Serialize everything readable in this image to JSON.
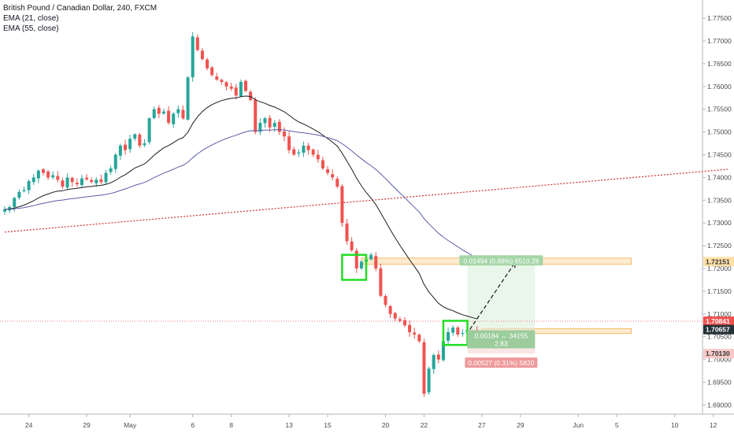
{
  "legend": {
    "title": "British Pound / Canadian Dollar, 240, FXCM",
    "ema_fast": "EMA (21, close)",
    "ema_slow": "EMA (55, close)"
  },
  "colors": {
    "up": "#26a69a",
    "down": "#ef5350",
    "ema_fast": "#1c1c1c",
    "ema_slow": "#5b5ca8",
    "trend": "#d32f2f",
    "box": "#22dd22",
    "zone": "#fbe3b8",
    "price_line": "#ef5350",
    "price_tag": "#263238",
    "target_tag": "#a5d6a7",
    "stop_tag": "#ef9a9a"
  },
  "chart_data": {
    "type": "candlestick",
    "symbol": "British Pound / Canadian Dollar, 240, FXCM",
    "ylim": [
      1.688,
      1.779
    ],
    "y_ticks": [
      "1.77500",
      "1.77000",
      "1.76500",
      "1.76000",
      "1.75500",
      "1.75000",
      "1.74500",
      "1.74000",
      "1.73500",
      "1.73000",
      "1.72500",
      "1.72000",
      "1.71500",
      "1.71000",
      "1.70500",
      "1.70000",
      "1.69500",
      "1.69000"
    ],
    "x_ticks": [
      {
        "label": "24",
        "i": 5
      },
      {
        "label": "29",
        "i": 17
      },
      {
        "label": "May",
        "i": 26
      },
      {
        "label": "6",
        "i": 39
      },
      {
        "label": "8",
        "i": 47
      },
      {
        "label": "13",
        "i": 59
      },
      {
        "label": "15",
        "i": 67
      },
      {
        "label": "20",
        "i": 79
      },
      {
        "label": "22",
        "i": 87
      },
      {
        "label": "27",
        "i": 99
      },
      {
        "label": "29",
        "i": 107
      },
      {
        "label": "Jun",
        "i": 119
      },
      {
        "label": "5",
        "i": 127
      },
      {
        "label": "10",
        "i": 139
      },
      {
        "label": "12",
        "i": 147
      }
    ],
    "closes": [
      1.733,
      1.7335,
      1.7355,
      1.7368,
      1.7372,
      1.7392,
      1.74,
      1.7415,
      1.741,
      1.74,
      1.7405,
      1.7395,
      1.738,
      1.74,
      1.739,
      1.7385,
      1.7398,
      1.7396,
      1.739,
      1.7395,
      1.739,
      1.741,
      1.742,
      1.745,
      1.747,
      1.746,
      1.7485,
      1.7495,
      1.747,
      1.7475,
      1.753,
      1.755,
      1.754,
      1.7545,
      1.752,
      1.754,
      1.755,
      1.753,
      1.762,
      1.771,
      1.768,
      1.766,
      1.764,
      1.7625,
      1.7615,
      1.761,
      1.76,
      1.7595,
      1.758,
      1.761,
      1.759,
      1.757,
      1.75,
      1.752,
      1.753,
      1.751,
      1.752,
      1.75,
      1.749,
      1.746,
      1.745,
      1.7455,
      1.747,
      1.746,
      1.745,
      1.744,
      1.742,
      1.741,
      1.74,
      1.738,
      1.73,
      1.726,
      1.724,
      1.72,
      1.7215,
      1.722,
      1.723,
      1.72,
      1.714,
      1.712,
      1.71,
      1.709,
      1.7085,
      1.7075,
      1.706,
      1.7055,
      1.704,
      1.6925,
      1.698,
      1.701,
      1.7,
      1.704,
      1.706,
      1.707,
      1.7055,
      1.7058,
      1.7065,
      1.7062,
      1.7057
    ],
    "series": [
      {
        "name": "EMA (21, close)"
      },
      {
        "name": "EMA (55, close)"
      }
    ],
    "trend_line": {
      "i_start": 0,
      "y_start": 1.728,
      "i_end": 150,
      "y_end": 1.7418
    },
    "resistance_zone": {
      "i_start": 74,
      "i_end": 130,
      "y_low": 1.7209,
      "y_high": 1.7223
    },
    "support_zone": {
      "i_start": 99,
      "i_end": 130,
      "y_low": 1.7057,
      "y_high": 1.7068
    },
    "consolidation_boxes": [
      {
        "i_start": 70,
        "i_end": 75,
        "y_low": 1.7175,
        "y_high": 1.723
      },
      {
        "i_start": 91,
        "i_end": 96,
        "y_low": 1.7032,
        "y_high": 1.7085
      }
    ],
    "position": {
      "i_start": 96,
      "i_end": 110,
      "entry": 1.7066,
      "target": 1.72151,
      "stop": 1.7013,
      "target_label": "0.01494 (0.88%) 6510.28",
      "entry_label": "0.00184 ↔ 34155",
      "ratio_label": "2.83",
      "stop_label": "0.00527 (0.31%) 5820"
    },
    "projection": {
      "i_start": 96.5,
      "y_start": 1.7066,
      "i_end": 106,
      "y_end": 1.7215
    },
    "price_tags": [
      {
        "value": 1.72151,
        "label": "1.72151",
        "kind": "target"
      },
      {
        "value": 1.70841,
        "label": "1.70841",
        "kind": "line"
      },
      {
        "value": 1.70657,
        "label": "1.70657",
        "kind": "price"
      },
      {
        "value": 1.7013,
        "label": "1.70130",
        "kind": "stop"
      }
    ],
    "current_price_line": 1.70841
  }
}
